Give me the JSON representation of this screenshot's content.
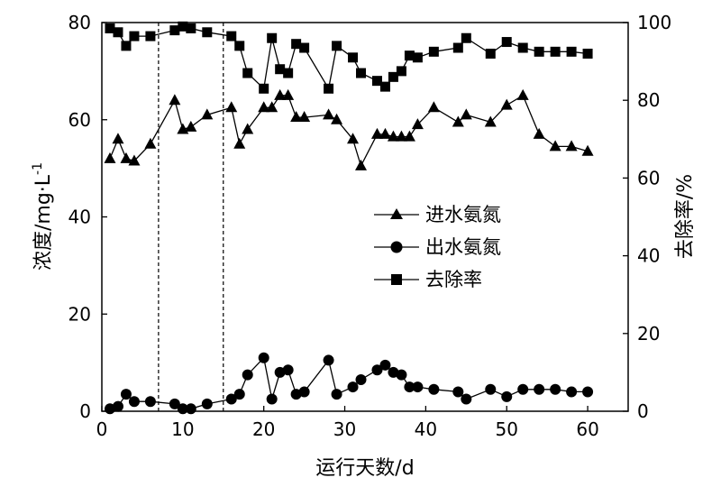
{
  "chart_data": {
    "type": "line",
    "xlabel": "运行天数/d",
    "ylabel_left": "浓度/mg·L⁻¹",
    "ylabel_right": "去除率/%",
    "xlim": [
      0,
      65
    ],
    "ylim_left": [
      0,
      80
    ],
    "ylim_right": [
      0,
      100
    ],
    "xticks": [
      0,
      10,
      20,
      30,
      40,
      50,
      60
    ],
    "yticks_left": [
      0,
      20,
      40,
      60,
      80
    ],
    "yticks_right": [
      0,
      20,
      40,
      60,
      80,
      100
    ],
    "phase_boundaries_x": [
      7,
      15
    ],
    "legend_position": "center-right",
    "grid": false,
    "series": [
      {
        "name": "进水氨氮",
        "axis": "left",
        "marker": "triangle",
        "x": [
          1,
          2,
          3,
          4,
          6,
          9,
          10,
          11,
          13,
          16,
          17,
          18,
          20,
          21,
          22,
          23,
          24,
          25,
          28,
          29,
          31,
          32,
          34,
          35,
          36,
          37,
          38,
          39,
          41,
          44,
          45,
          48,
          50,
          52,
          54,
          56,
          58,
          60
        ],
        "values": [
          52,
          56,
          52,
          51.5,
          55,
          64,
          58,
          58.5,
          61,
          62.5,
          55,
          58,
          62.5,
          62.5,
          65,
          65,
          60.5,
          60.5,
          61,
          60,
          56,
          50.5,
          57,
          57,
          56.5,
          56.5,
          56.5,
          59,
          62.5,
          59.5,
          61,
          59.5,
          63,
          65,
          57,
          54.5,
          54.5,
          53.5
        ]
      },
      {
        "name": "出水氨氮",
        "axis": "left",
        "marker": "circle",
        "x": [
          1,
          2,
          3,
          4,
          6,
          9,
          10,
          11,
          13,
          16,
          17,
          18,
          20,
          21,
          22,
          23,
          24,
          25,
          28,
          29,
          31,
          32,
          34,
          35,
          36,
          37,
          38,
          39,
          41,
          44,
          45,
          48,
          50,
          52,
          54,
          56,
          58,
          60
        ],
        "values": [
          0.5,
          1,
          3.5,
          2,
          2,
          1.5,
          0.5,
          0.5,
          1.5,
          2.5,
          3.5,
          7.5,
          11,
          2.5,
          8,
          8.5,
          3.5,
          4,
          10.5,
          3.5,
          5,
          6.5,
          8.5,
          9.5,
          8,
          7.5,
          5,
          5,
          4.5,
          4,
          2.5,
          4.5,
          3,
          4.5,
          4.5,
          4.5,
          4,
          4
        ]
      },
      {
        "name": "去除率",
        "axis": "right",
        "marker": "square",
        "x": [
          1,
          2,
          3,
          4,
          6,
          9,
          10,
          11,
          13,
          16,
          17,
          18,
          20,
          21,
          22,
          23,
          24,
          25,
          28,
          29,
          31,
          32,
          34,
          35,
          36,
          37,
          38,
          39,
          41,
          44,
          45,
          48,
          50,
          52,
          54,
          56,
          58,
          60
        ],
        "values": [
          98.5,
          97.5,
          94,
          96.5,
          96.5,
          98,
          99,
          98.5,
          97.5,
          96.5,
          94,
          87,
          83,
          96,
          88,
          87,
          94.5,
          93.5,
          83,
          94,
          91,
          87,
          85,
          83.5,
          86,
          87.5,
          91.5,
          91,
          92.5,
          93.5,
          96,
          92,
          95,
          93.5,
          92.5,
          92.5,
          92.5,
          92
        ]
      }
    ],
    "colors": {
      "axis": "#000000",
      "series": "#000000",
      "background": "#ffffff"
    }
  }
}
